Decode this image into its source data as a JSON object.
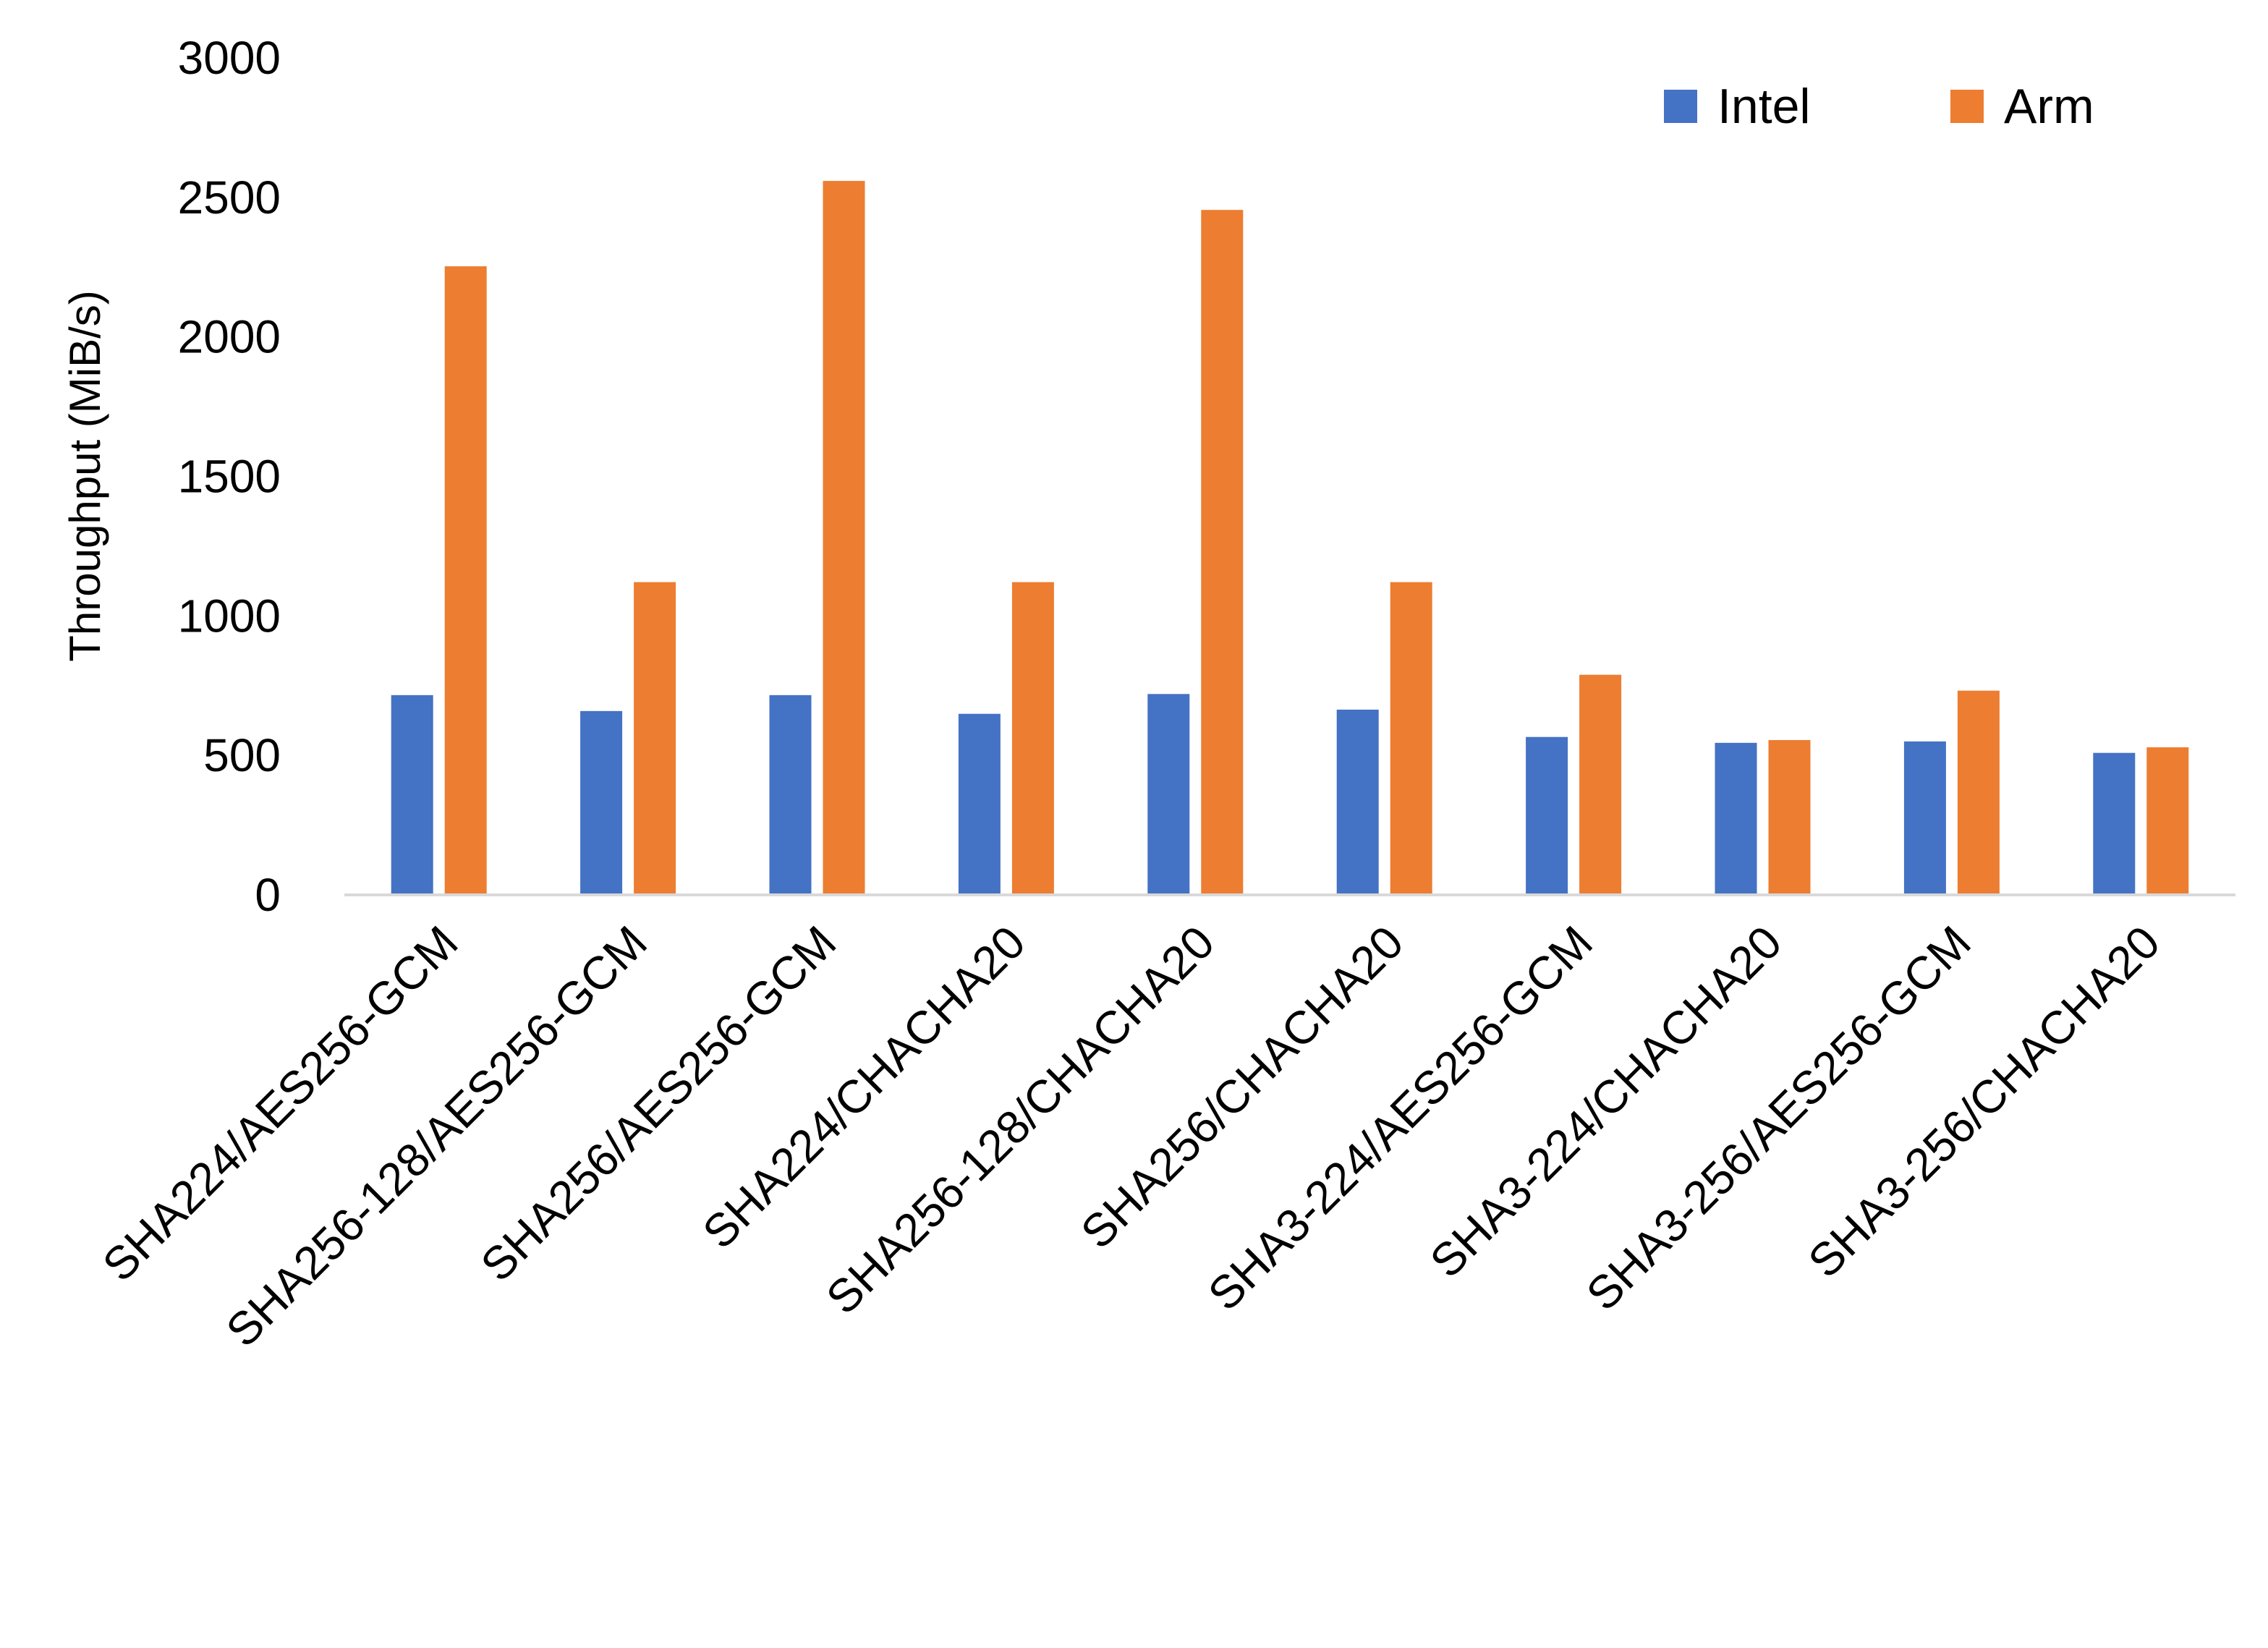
{
  "chart_data": {
    "type": "bar",
    "title": "",
    "xlabel": "",
    "ylabel": "Throughput (MiB/s)",
    "ylim": [
      0,
      3000
    ],
    "yticks": [
      0,
      500,
      1000,
      1500,
      2000,
      2500,
      3000
    ],
    "grid": false,
    "legend_placement": "top-right",
    "categories": [
      "SHA224/AES256-GCM",
      "SHA256-128/AES256-GCM",
      "SHA256/AES256-GCM",
      "SHA224/CHACHA20",
      "SHA256-128/CHACHA20",
      "SHA256/CHACHA20",
      "SHA3-224/AES256-GCM",
      "SHA3-224/CHACHA20",
      "SHA3-256/AES256-GCM",
      "SHA3-256/CHACHA20"
    ],
    "series": [
      {
        "name": "Intel",
        "color": "#4472C4",
        "values": [
          716,
          659,
          716,
          649,
          720,
          664,
          566,
          545,
          550,
          509
        ]
      },
      {
        "name": "Arm",
        "color": "#ED7D31",
        "values": [
          2253,
          1121,
          2559,
          1121,
          2455,
          1121,
          789,
          555,
          732,
          529
        ]
      }
    ]
  }
}
